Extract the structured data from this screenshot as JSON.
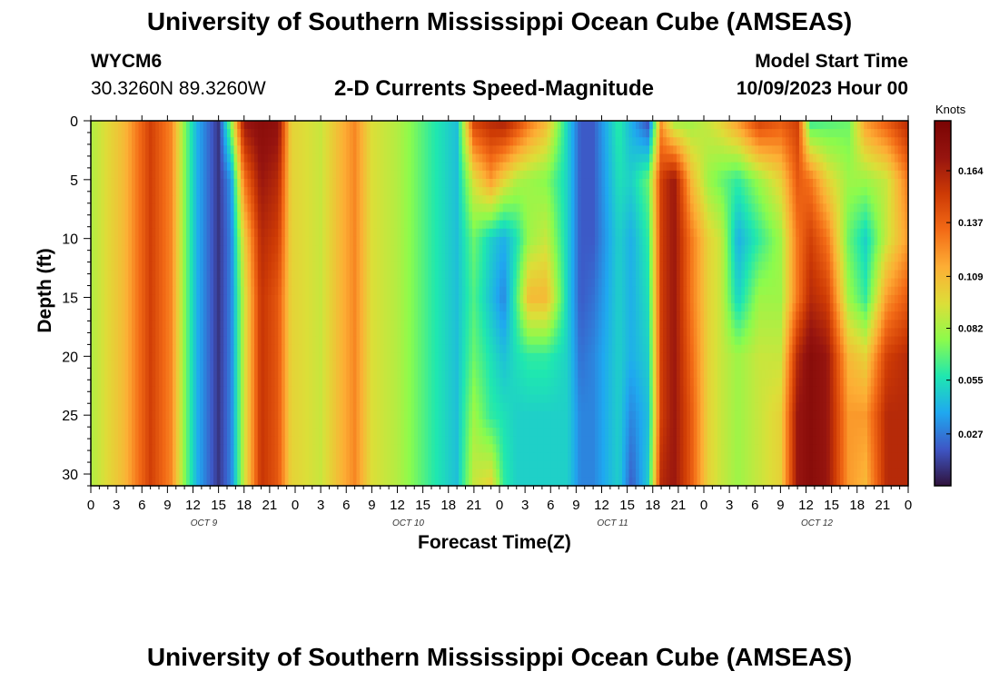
{
  "header": {
    "title": "University of Southern Mississippi Ocean Cube (AMSEAS)",
    "station": "WYCM6",
    "coords": "30.3260N  89.3260W",
    "subtitle": "2-D Currents Speed-Magnitude",
    "model_start_label": "Model Start Time",
    "model_start_value": "10/09/2023 Hour 00"
  },
  "footer": {
    "title": "University of Southern Mississippi Ocean Cube (AMSEAS)"
  },
  "chart_data": {
    "type": "heatmap",
    "title": "2-D Currents Speed-Magnitude",
    "xlabel": "Forecast Time(Z)",
    "ylabel": "Depth (ft)",
    "x_range_hours": [
      0,
      96
    ],
    "y_range_ft": [
      0,
      31
    ],
    "x_tick_labels": [
      "0",
      "3",
      "6",
      "9",
      "12",
      "15",
      "18",
      "21",
      "0",
      "3",
      "6",
      "9",
      "12",
      "15",
      "18",
      "21",
      "0",
      "3",
      "6",
      "9",
      "12",
      "15",
      "18",
      "21",
      "0",
      "3",
      "6",
      "9",
      "12",
      "15",
      "18",
      "21",
      "0"
    ],
    "day_labels": [
      {
        "label": "OCT 9",
        "hour": 12
      },
      {
        "label": "OCT 10",
        "hour": 36
      },
      {
        "label": "OCT 11",
        "hour": 60
      },
      {
        "label": "OCT 12",
        "hour": 84
      }
    ],
    "y_tick_labels": [
      "0",
      "5",
      "10",
      "15",
      "20",
      "25",
      "30"
    ],
    "y_ticks_ft": [
      0,
      5,
      10,
      15,
      20,
      25,
      30
    ],
    "colorbar": {
      "unit": "Knots",
      "min": 0.0,
      "max": 0.19,
      "ticks": [
        "0.164",
        "0.137",
        "0.109",
        "0.082",
        "0.055",
        "0.027"
      ],
      "tick_values": [
        0.164,
        0.137,
        0.109,
        0.082,
        0.055,
        0.027
      ]
    },
    "depth_profiles_ft": [
      0,
      5,
      10,
      15,
      20,
      25,
      31
    ],
    "time_hours": [
      0,
      4,
      7,
      9.5,
      11,
      12.5,
      15,
      16.5,
      18,
      20,
      22,
      23.5,
      27,
      31,
      33,
      36,
      40,
      43,
      45,
      47,
      48.5,
      50,
      51.5,
      53.5,
      56,
      57.5,
      59,
      62,
      63.5,
      65.5,
      67,
      68.5,
      70.5,
      72.5,
      74,
      76,
      78.5,
      81,
      83,
      84.5,
      86.5,
      89,
      91,
      93.5,
      96
    ],
    "speed_knots": [
      [
        0.084,
        0.084,
        0.084,
        0.084,
        0.084,
        0.084,
        0.084
      ],
      [
        0.11,
        0.11,
        0.11,
        0.11,
        0.11,
        0.11,
        0.11
      ],
      [
        0.15,
        0.15,
        0.15,
        0.15,
        0.15,
        0.15,
        0.15
      ],
      [
        0.125,
        0.125,
        0.125,
        0.125,
        0.125,
        0.125,
        0.125
      ],
      [
        0.075,
        0.075,
        0.075,
        0.075,
        0.075,
        0.075,
        0.075
      ],
      [
        0.04,
        0.04,
        0.04,
        0.04,
        0.04,
        0.04,
        0.04
      ],
      [
        0.01,
        0.01,
        0.01,
        0.01,
        0.01,
        0.01,
        0.01
      ],
      [
        0.08,
        0.035,
        0.03,
        0.03,
        0.03,
        0.03,
        0.03
      ],
      [
        0.17,
        0.13,
        0.1,
        0.09,
        0.09,
        0.09,
        0.09
      ],
      [
        0.18,
        0.17,
        0.16,
        0.155,
        0.155,
        0.155,
        0.155
      ],
      [
        0.175,
        0.16,
        0.15,
        0.14,
        0.14,
        0.14,
        0.14
      ],
      [
        0.1,
        0.1,
        0.1,
        0.1,
        0.1,
        0.1,
        0.1
      ],
      [
        0.09,
        0.09,
        0.09,
        0.09,
        0.09,
        0.09,
        0.09
      ],
      [
        0.125,
        0.125,
        0.125,
        0.125,
        0.125,
        0.125,
        0.125
      ],
      [
        0.095,
        0.095,
        0.095,
        0.095,
        0.095,
        0.095,
        0.095
      ],
      [
        0.085,
        0.085,
        0.085,
        0.085,
        0.085,
        0.085,
        0.085
      ],
      [
        0.06,
        0.06,
        0.06,
        0.06,
        0.06,
        0.06,
        0.06
      ],
      [
        0.045,
        0.045,
        0.045,
        0.045,
        0.045,
        0.045,
        0.045
      ],
      [
        0.15,
        0.095,
        0.07,
        0.065,
        0.07,
        0.08,
        0.09
      ],
      [
        0.16,
        0.12,
        0.05,
        0.045,
        0.055,
        0.06,
        0.1
      ],
      [
        0.165,
        0.1,
        0.04,
        0.03,
        0.045,
        0.055,
        0.06
      ],
      [
        0.15,
        0.085,
        0.055,
        0.065,
        0.055,
        0.05,
        0.05
      ],
      [
        0.13,
        0.08,
        0.08,
        0.11,
        0.06,
        0.05,
        0.05
      ],
      [
        0.11,
        0.075,
        0.09,
        0.11,
        0.06,
        0.05,
        0.05
      ],
      [
        0.05,
        0.05,
        0.05,
        0.05,
        0.05,
        0.05,
        0.05
      ],
      [
        0.02,
        0.02,
        0.02,
        0.02,
        0.025,
        0.03,
        0.03
      ],
      [
        0.02,
        0.02,
        0.02,
        0.025,
        0.03,
        0.03,
        0.03
      ],
      [
        0.06,
        0.055,
        0.05,
        0.05,
        0.05,
        0.05,
        0.05
      ],
      [
        0.04,
        0.05,
        0.04,
        0.04,
        0.04,
        0.03,
        0.02
      ],
      [
        0.015,
        0.07,
        0.06,
        0.055,
        0.05,
        0.045,
        0.05
      ],
      [
        0.12,
        0.15,
        0.15,
        0.15,
        0.15,
        0.15,
        0.16
      ],
      [
        0.08,
        0.17,
        0.17,
        0.17,
        0.17,
        0.17,
        0.17
      ],
      [
        0.08,
        0.11,
        0.13,
        0.13,
        0.135,
        0.14,
        0.14
      ],
      [
        0.09,
        0.08,
        0.1,
        0.1,
        0.1,
        0.1,
        0.1
      ],
      [
        0.1,
        0.07,
        0.09,
        0.09,
        0.09,
        0.09,
        0.09
      ],
      [
        0.12,
        0.06,
        0.04,
        0.05,
        0.08,
        0.08,
        0.08
      ],
      [
        0.15,
        0.08,
        0.06,
        0.08,
        0.09,
        0.09,
        0.09
      ],
      [
        0.14,
        0.1,
        0.08,
        0.08,
        0.09,
        0.1,
        0.1
      ],
      [
        0.15,
        0.14,
        0.13,
        0.13,
        0.16,
        0.17,
        0.17
      ],
      [
        0.06,
        0.13,
        0.15,
        0.16,
        0.18,
        0.18,
        0.18
      ],
      [
        0.065,
        0.1,
        0.13,
        0.15,
        0.17,
        0.17,
        0.17
      ],
      [
        0.07,
        0.08,
        0.07,
        0.08,
        0.11,
        0.12,
        0.12
      ],
      [
        0.12,
        0.08,
        0.05,
        0.06,
        0.1,
        0.12,
        0.11
      ],
      [
        0.14,
        0.09,
        0.09,
        0.12,
        0.15,
        0.16,
        0.16
      ],
      [
        0.16,
        0.13,
        0.12,
        0.14,
        0.16,
        0.16,
        0.16
      ]
    ],
    "colors": {
      "colormap_stops": [
        "#30123b",
        "#3e56c5",
        "#1fa8f0",
        "#1fe7b0",
        "#8cfb4c",
        "#ddde38",
        "#fdae35",
        "#f36b16",
        "#cd3a05",
        "#96140f",
        "#7a0403"
      ]
    }
  }
}
